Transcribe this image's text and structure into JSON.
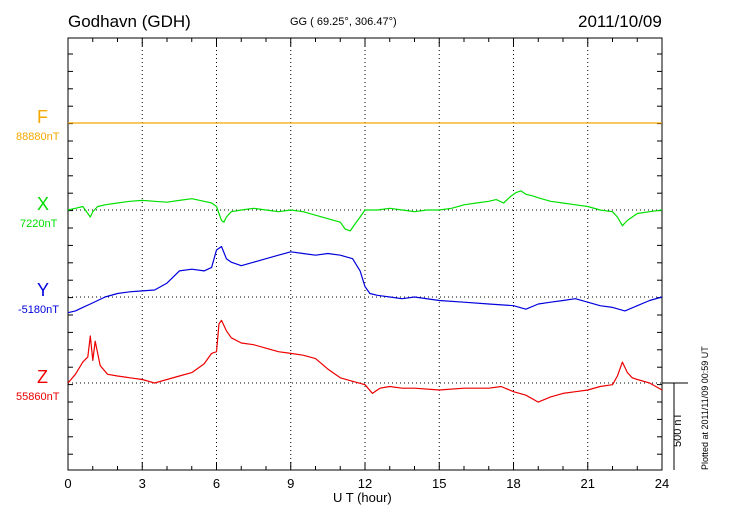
{
  "header": {
    "station": "Godhavn (GDH)",
    "coords": "GG ( 69.25°, 306.47°)",
    "date": "2011/10/09"
  },
  "plotted_note": "Plotted at 2011/11/09 00:59 UT",
  "scale_label": "500 nT",
  "components": [
    {
      "letter": "F",
      "baseline": "88880nT",
      "color": "#f5a800"
    },
    {
      "letter": "X",
      "baseline": "7220nT",
      "color": "#00e000"
    },
    {
      "letter": "Y",
      "baseline": "-5180nT",
      "color": "#0000dd"
    },
    {
      "letter": "Z",
      "baseline": "55860nT",
      "color": "#ee0000"
    }
  ],
  "chart_data": {
    "type": "line",
    "xlabel": "U T (hour)",
    "xlim": [
      0,
      24
    ],
    "xticks": [
      "0",
      "3",
      "6",
      "9",
      "12",
      "15",
      "18",
      "21",
      "24"
    ],
    "grid": true,
    "series": [
      {
        "name": "F",
        "baseline": "88880nT",
        "color": "#f5a800",
        "x": [
          0,
          24
        ],
        "y": [
          0,
          0
        ]
      },
      {
        "name": "X",
        "baseline": "7220nT",
        "color": "#00e000",
        "x": [
          0,
          0.3,
          0.6,
          0.8,
          0.9,
          1.0,
          1.2,
          1.5,
          2,
          2.5,
          3,
          3.5,
          4,
          4.5,
          5,
          5.5,
          5.8,
          6.0,
          6.1,
          6.2,
          6.3,
          6.4,
          6.6,
          7,
          7.5,
          8,
          8.5,
          9,
          9.5,
          10,
          10.5,
          11,
          11.2,
          11.4,
          11.6,
          11.8,
          12,
          12.5,
          13,
          13.5,
          14,
          14.5,
          15,
          15.5,
          16,
          16.5,
          17,
          17.3,
          17.6,
          17.9,
          18.1,
          18.3,
          18.5,
          18.8,
          19,
          19.5,
          20,
          20.5,
          21,
          21.5,
          22,
          22.2,
          22.4,
          22.6,
          22.8,
          23,
          23.5,
          24
        ],
        "y": [
          0,
          10,
          20,
          -20,
          -40,
          -10,
          20,
          30,
          40,
          50,
          55,
          50,
          45,
          55,
          65,
          50,
          40,
          20,
          -20,
          -60,
          -70,
          -40,
          -10,
          0,
          10,
          0,
          -10,
          0,
          -10,
          -30,
          -50,
          -70,
          -110,
          -120,
          -80,
          -40,
          0,
          0,
          10,
          0,
          -10,
          0,
          0,
          10,
          30,
          40,
          50,
          60,
          40,
          80,
          100,
          110,
          90,
          80,
          70,
          50,
          40,
          30,
          20,
          0,
          -10,
          -40,
          -90,
          -60,
          -40,
          -20,
          -10,
          0
        ]
      },
      {
        "name": "Y",
        "baseline": "-5180nT",
        "color": "#0000dd",
        "x": [
          0,
          0.3,
          0.6,
          0.9,
          1.2,
          1.5,
          2,
          2.5,
          3,
          3.5,
          4,
          4.5,
          5,
          5.5,
          5.8,
          6.0,
          6.2,
          6.4,
          6.6,
          7,
          7.5,
          8,
          8.5,
          9,
          9.5,
          10,
          10.5,
          11,
          11.5,
          11.8,
          12,
          12.2,
          12.5,
          13,
          13.5,
          14,
          15,
          16,
          17,
          18,
          18.5,
          19,
          19.5,
          20,
          20.5,
          21,
          21.5,
          22,
          22.5,
          23,
          23.5,
          24
        ],
        "y": [
          -90,
          -80,
          -60,
          -40,
          -20,
          0,
          20,
          30,
          35,
          40,
          80,
          150,
          160,
          150,
          170,
          270,
          290,
          220,
          200,
          180,
          200,
          220,
          240,
          260,
          250,
          240,
          250,
          240,
          220,
          150,
          60,
          20,
          10,
          0,
          -10,
          0,
          -20,
          -30,
          -40,
          -50,
          -70,
          -40,
          -30,
          -20,
          -10,
          -30,
          -50,
          -60,
          -80,
          -50,
          -20,
          0
        ]
      },
      {
        "name": "Z",
        "baseline": "55860nT",
        "color": "#ee0000",
        "x": [
          0,
          0.3,
          0.6,
          0.8,
          0.9,
          1.0,
          1.1,
          1.3,
          1.6,
          2,
          2.5,
          3,
          3.5,
          4,
          4.5,
          5,
          5.5,
          5.8,
          6.0,
          6.1,
          6.2,
          6.4,
          6.6,
          7,
          7.5,
          8,
          8.5,
          9,
          9.5,
          10,
          10.5,
          11,
          11.5,
          12,
          12.3,
          12.6,
          13,
          13.5,
          14,
          15,
          16,
          17,
          17.5,
          18,
          18.5,
          19,
          19.5,
          20,
          20.5,
          21,
          21.5,
          22,
          22.2,
          22.4,
          22.6,
          22.8,
          23,
          23.5,
          24
        ],
        "y": [
          0,
          50,
          120,
          150,
          270,
          130,
          240,
          100,
          50,
          40,
          30,
          20,
          0,
          20,
          40,
          60,
          110,
          170,
          180,
          340,
          360,
          300,
          260,
          230,
          220,
          200,
          180,
          170,
          160,
          140,
          80,
          30,
          10,
          -10,
          -60,
          -30,
          -20,
          -30,
          -30,
          -40,
          -30,
          -30,
          -20,
          -50,
          -70,
          -110,
          -80,
          -60,
          -50,
          -40,
          -20,
          -10,
          40,
          120,
          60,
          30,
          20,
          0,
          -40
        ]
      }
    ]
  }
}
